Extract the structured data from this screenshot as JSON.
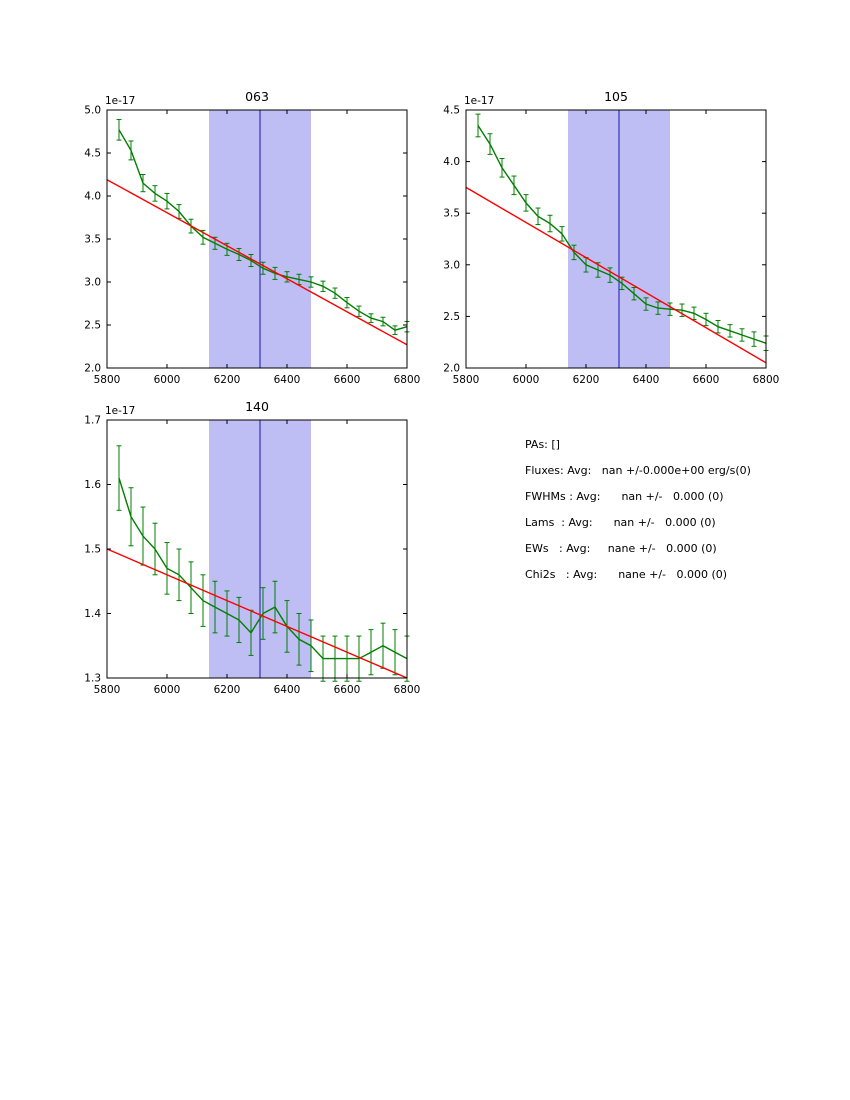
{
  "colors": {
    "band": "#bebef5",
    "band_center_line": "#3333bb",
    "spectrum": "#007f00",
    "fit": "#ff0000",
    "axis": "#000000"
  },
  "stats": {
    "line1": "PAs: []",
    "line2": "Fluxes: Avg:   nan +/-0.000e+00 erg/s(0)",
    "line3": "FWHMs : Avg:      nan +/-   0.000 (0)",
    "line4": "Lams  : Avg:      nan +/-   0.000 (0)",
    "line5": "EWs   : Avg:     nane +/-   0.000 (0)",
    "line6": "Chi2s   : Avg:      nane +/-   0.000 (0)"
  },
  "chart_data": [
    {
      "id": "063",
      "type": "line",
      "title": "063",
      "offset_label": "1e-17",
      "xlim": [
        5800,
        6800
      ],
      "ylim": [
        2.0,
        5.0
      ],
      "xticks": [
        5800,
        6000,
        6200,
        6400,
        6600,
        6800
      ],
      "yticks": [
        2.0,
        2.5,
        3.0,
        3.5,
        4.0,
        4.5,
        5.0
      ],
      "ytick_labels": [
        "2.0",
        "2.5",
        "3.0",
        "3.5",
        "4.0",
        "4.5",
        "5.0"
      ],
      "band": {
        "x0": 6140,
        "x1": 6480,
        "center": 6310
      },
      "series": [
        {
          "name": "spectrum",
          "color_key": "spectrum",
          "x": [
            5840,
            5880,
            5920,
            5960,
            6000,
            6040,
            6080,
            6120,
            6160,
            6200,
            6240,
            6280,
            6320,
            6360,
            6400,
            6440,
            6480,
            6520,
            6560,
            6600,
            6640,
            6680,
            6720,
            6760,
            6800
          ],
          "y": [
            4.77,
            4.53,
            4.15,
            4.03,
            3.94,
            3.82,
            3.65,
            3.52,
            3.45,
            3.38,
            3.32,
            3.25,
            3.16,
            3.1,
            3.06,
            3.03,
            3.0,
            2.95,
            2.87,
            2.76,
            2.66,
            2.58,
            2.54,
            2.44,
            2.48
          ],
          "yerr": [
            0.12,
            0.11,
            0.1,
            0.09,
            0.09,
            0.08,
            0.08,
            0.08,
            0.07,
            0.07,
            0.07,
            0.07,
            0.07,
            0.07,
            0.06,
            0.06,
            0.06,
            0.06,
            0.06,
            0.06,
            0.06,
            0.05,
            0.05,
            0.05,
            0.06
          ]
        },
        {
          "name": "linear-fit",
          "color_key": "fit",
          "x": [
            5800,
            6800
          ],
          "y": [
            4.19,
            2.27
          ]
        }
      ]
    },
    {
      "id": "105",
      "type": "line",
      "title": "105",
      "offset_label": "1e-17",
      "xlim": [
        5800,
        6800
      ],
      "ylim": [
        2.0,
        4.5
      ],
      "xticks": [
        5800,
        6000,
        6200,
        6400,
        6600,
        6800
      ],
      "yticks": [
        2.0,
        2.5,
        3.0,
        3.5,
        4.0,
        4.5
      ],
      "ytick_labels": [
        "2.0",
        "2.5",
        "3.0",
        "3.5",
        "4.0",
        "4.5"
      ],
      "band": {
        "x0": 6140,
        "x1": 6480,
        "center": 6310
      },
      "series": [
        {
          "name": "spectrum",
          "color_key": "spectrum",
          "x": [
            5840,
            5880,
            5920,
            5960,
            6000,
            6040,
            6080,
            6120,
            6160,
            6200,
            6240,
            6280,
            6320,
            6360,
            6400,
            6440,
            6480,
            6520,
            6560,
            6600,
            6640,
            6680,
            6720,
            6760,
            6800
          ],
          "y": [
            4.35,
            4.17,
            3.94,
            3.77,
            3.6,
            3.47,
            3.4,
            3.3,
            3.12,
            3.0,
            2.95,
            2.9,
            2.82,
            2.72,
            2.62,
            2.58,
            2.57,
            2.56,
            2.53,
            2.47,
            2.4,
            2.36,
            2.32,
            2.28,
            2.24
          ],
          "yerr": [
            0.11,
            0.1,
            0.09,
            0.09,
            0.08,
            0.08,
            0.08,
            0.07,
            0.07,
            0.07,
            0.07,
            0.07,
            0.06,
            0.06,
            0.06,
            0.06,
            0.06,
            0.06,
            0.06,
            0.06,
            0.06,
            0.06,
            0.06,
            0.07,
            0.07
          ]
        },
        {
          "name": "linear-fit",
          "color_key": "fit",
          "x": [
            5800,
            6800
          ],
          "y": [
            3.75,
            2.05
          ]
        }
      ]
    },
    {
      "id": "140",
      "type": "line",
      "title": "140",
      "offset_label": "1e-17",
      "xlim": [
        5800,
        6800
      ],
      "ylim": [
        1.3,
        1.7
      ],
      "xticks": [
        5800,
        6000,
        6200,
        6400,
        6600,
        6800
      ],
      "yticks": [
        1.3,
        1.4,
        1.5,
        1.6,
        1.7
      ],
      "ytick_labels": [
        "1.3",
        "1.4",
        "1.5",
        "1.6",
        "1.7"
      ],
      "band": {
        "x0": 6140,
        "x1": 6480,
        "center": 6310
      },
      "series": [
        {
          "name": "spectrum",
          "color_key": "spectrum",
          "x": [
            5840,
            5880,
            5920,
            5960,
            6000,
            6040,
            6080,
            6120,
            6160,
            6200,
            6240,
            6280,
            6320,
            6360,
            6400,
            6440,
            6480,
            6520,
            6560,
            6600,
            6640,
            6680,
            6720,
            6760,
            6800
          ],
          "y": [
            1.61,
            1.55,
            1.52,
            1.5,
            1.47,
            1.46,
            1.44,
            1.42,
            1.41,
            1.4,
            1.39,
            1.37,
            1.4,
            1.41,
            1.38,
            1.36,
            1.35,
            1.33,
            1.33,
            1.33,
            1.33,
            1.34,
            1.35,
            1.34,
            1.33
          ],
          "yerr": [
            0.05,
            0.045,
            0.045,
            0.04,
            0.04,
            0.04,
            0.04,
            0.04,
            0.04,
            0.035,
            0.035,
            0.035,
            0.04,
            0.04,
            0.04,
            0.04,
            0.04,
            0.035,
            0.035,
            0.035,
            0.035,
            0.035,
            0.035,
            0.035,
            0.035
          ]
        },
        {
          "name": "linear-fit",
          "color_key": "fit",
          "x": [
            5800,
            6800
          ],
          "y": [
            1.5,
            1.3
          ]
        }
      ]
    }
  ]
}
